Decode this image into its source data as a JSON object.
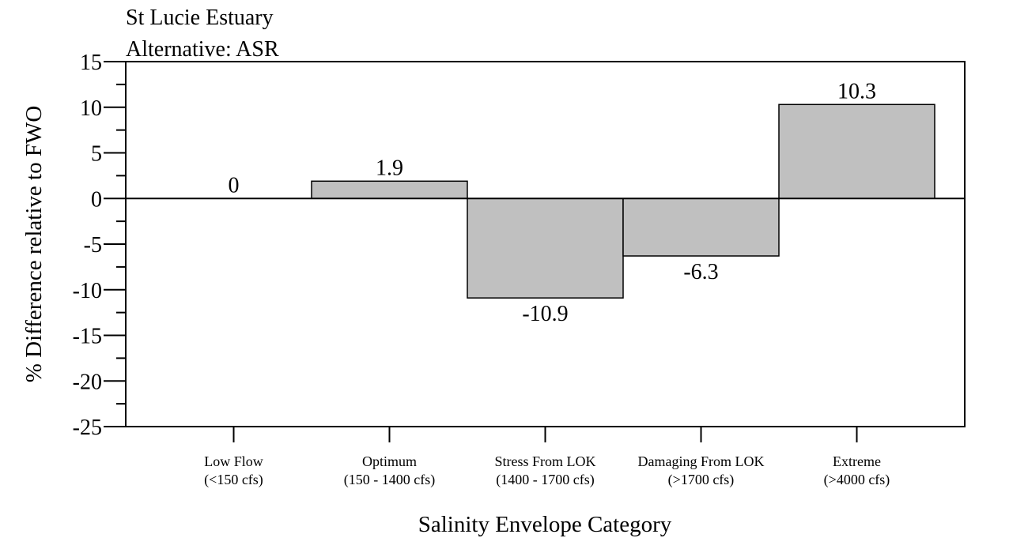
{
  "chart_data": {
    "type": "bar",
    "title": "St Lucie Estuary",
    "subtitle": "Alternative: ASR",
    "xlabel": "Salinity Envelope Category",
    "ylabel": "% Difference relative to FWO",
    "categories": [
      [
        "Low Flow",
        "(<150 cfs)"
      ],
      [
        "Optimum",
        "(150 - 1400 cfs)"
      ],
      [
        "Stress From LOK",
        "(1400 - 1700 cfs)"
      ],
      [
        "Damaging From LOK",
        "(>1700 cfs)"
      ],
      [
        "Extreme",
        "(>4000 cfs)"
      ]
    ],
    "values": [
      0,
      1.9,
      -10.9,
      -6.3,
      10.3
    ],
    "data_labels": [
      "0",
      "1.9",
      "-10.9",
      "-6.3",
      "10.3"
    ],
    "ylim": [
      -25,
      15
    ],
    "yticks": [
      15,
      10,
      5,
      0,
      -5,
      -10,
      -15,
      -20,
      -25
    ],
    "ytick_labels": [
      "15",
      "10",
      "5",
      "0",
      "-5",
      "-10",
      "-15",
      "-20",
      "-25"
    ],
    "minor_tick_step": 2.5,
    "grid": false,
    "bar_color": "#c0c0c0",
    "bar_edge_color": "#000000"
  }
}
